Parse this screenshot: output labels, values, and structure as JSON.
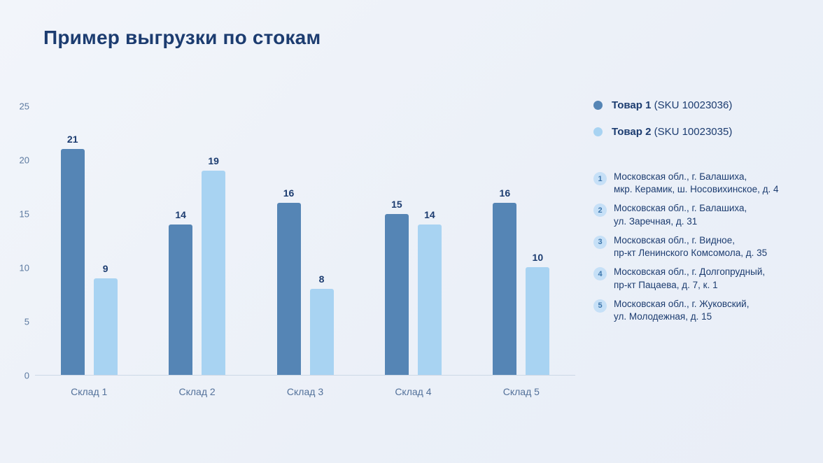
{
  "page": {
    "title": "Пример выгрузки по стокам"
  },
  "colors": {
    "series1": "#5585b5",
    "series2": "#a8d3f2",
    "title": "#1c3c70",
    "axis_text": "#5b79a0",
    "background": "#eef2f8"
  },
  "chart_data": {
    "type": "bar",
    "title": "Пример выгрузки по стокам",
    "categories": [
      "Склад 1",
      "Склад 2",
      "Склад 3",
      "Склад 4",
      "Склад 5"
    ],
    "series": [
      {
        "name": "Товар 1",
        "sku": "(SKU 10023036)",
        "color": "#5585b5",
        "values": [
          21,
          14,
          16,
          15,
          16
        ]
      },
      {
        "name": "Товар 2",
        "sku": "(SKU 10023035)",
        "color": "#a8d3f2",
        "values": [
          9,
          19,
          8,
          14,
          10
        ]
      }
    ],
    "xlabel": "",
    "ylabel": "",
    "ylim": [
      0,
      25
    ],
    "yticks": [
      0,
      5,
      10,
      15,
      20,
      25
    ],
    "grid": false,
    "legend_position": "right"
  },
  "addresses": [
    {
      "num": "1",
      "lines": [
        "Московская обл., г. Балашиха,",
        "мкр. Керамик, ш. Носовихинское, д. 4"
      ]
    },
    {
      "num": "2",
      "lines": [
        "Московская обл., г. Балашиха,",
        "ул. Заречная, д. 31"
      ]
    },
    {
      "num": "3",
      "lines": [
        "Московская обл., г. Видное,",
        "пр-кт Ленинского Комсомола, д. 35"
      ]
    },
    {
      "num": "4",
      "lines": [
        "Московская обл., г. Долгопрудный,",
        "пр-кт Пацаева, д. 7, к. 1"
      ]
    },
    {
      "num": "5",
      "lines": [
        "Московская обл., г. Жуковский,",
        "ул. Молодежная, д. 15"
      ]
    }
  ]
}
